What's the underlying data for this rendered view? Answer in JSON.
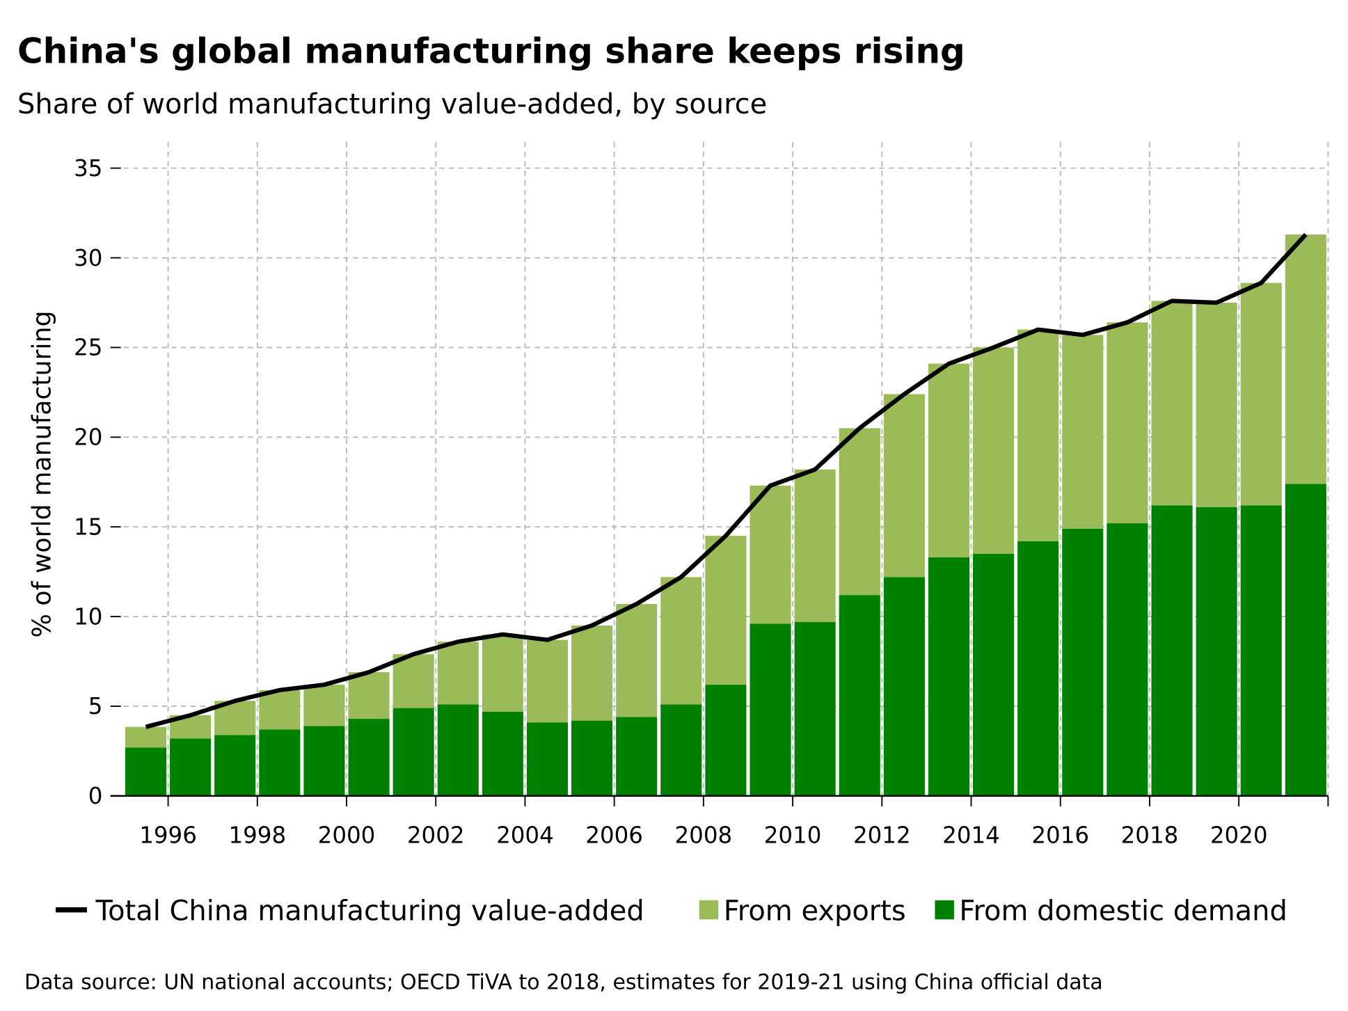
{
  "chart_data": {
    "type": "bar",
    "stacked": true,
    "title": "China's global manufacturing share keeps rising",
    "subtitle": "Share of world manufacturing value-added, by source",
    "xlabel": "",
    "ylabel": "% of world manufacturing",
    "ylim": [
      0,
      35
    ],
    "yticks": [
      0,
      5,
      10,
      15,
      20,
      25,
      30,
      35
    ],
    "xtick_labels": [
      "1996",
      "1998",
      "2000",
      "2002",
      "2004",
      "2006",
      "2008",
      "2010",
      "2012",
      "2014",
      "2016",
      "2018",
      "2020"
    ],
    "grid": true,
    "legend_position": "bottom",
    "categories": [
      1995,
      1996,
      1997,
      1998,
      1999,
      2000,
      2001,
      2002,
      2003,
      2004,
      2005,
      2006,
      2007,
      2008,
      2009,
      2010,
      2011,
      2012,
      2013,
      2014,
      2015,
      2016,
      2017,
      2018,
      2019,
      2020,
      2021
    ],
    "series": [
      {
        "name": "From domestic demand",
        "kind": "bar",
        "color": "#008000",
        "values": [
          2.7,
          3.2,
          3.4,
          3.7,
          3.9,
          4.3,
          4.9,
          5.1,
          4.7,
          4.1,
          4.2,
          4.4,
          5.1,
          6.2,
          9.6,
          9.7,
          11.2,
          12.2,
          13.3,
          13.5,
          14.2,
          14.9,
          15.2,
          16.2,
          16.1,
          16.2,
          17.4
        ]
      },
      {
        "name": "From exports",
        "kind": "bar",
        "color": "#9bbb59",
        "values": [
          1.15,
          1.3,
          1.9,
          2.2,
          2.3,
          2.6,
          3.0,
          3.5,
          4.3,
          4.6,
          5.3,
          6.3,
          7.1,
          8.3,
          7.7,
          8.5,
          9.3,
          10.2,
          10.8,
          11.5,
          11.8,
          10.8,
          11.2,
          11.4,
          11.4,
          12.4,
          13.9
        ]
      },
      {
        "name": "Total China manufacturing value-added",
        "kind": "line",
        "color": "#000000",
        "values": [
          3.85,
          4.5,
          5.3,
          5.9,
          6.2,
          6.9,
          7.9,
          8.6,
          9.0,
          8.7,
          9.5,
          10.7,
          12.2,
          14.5,
          17.3,
          18.2,
          20.5,
          22.4,
          24.1,
          25.0,
          26.0,
          25.7,
          26.4,
          27.6,
          27.5,
          28.6,
          31.3
        ]
      }
    ],
    "source": "Data source: UN national accounts; OECD TiVA to 2018, estimates for 2019-21 using China official data"
  }
}
